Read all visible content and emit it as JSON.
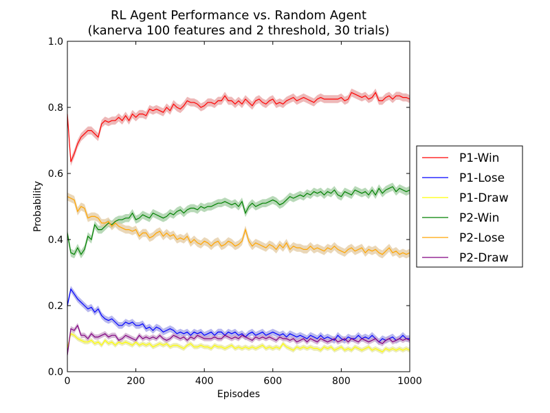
{
  "chart_data": {
    "type": "line",
    "title": "RL Agent Performance vs. Random Agent",
    "subtitle": "(kanerva 100 features and 2 threshold, 30 trials)",
    "xlabel": "Episodes",
    "ylabel": "Probability",
    "xlim": [
      0,
      1000
    ],
    "ylim": [
      0.0,
      1.0
    ],
    "xticks": [
      "0",
      "200",
      "400",
      "600",
      "800",
      "1000"
    ],
    "yticks": [
      "0.0",
      "0.2",
      "0.4",
      "0.6",
      "0.8",
      "1.0"
    ],
    "grid": false,
    "legend_position": "outside-right",
    "x": [
      0,
      10,
      20,
      30,
      40,
      50,
      60,
      70,
      80,
      90,
      100,
      110,
      120,
      130,
      140,
      150,
      160,
      170,
      180,
      190,
      200,
      210,
      220,
      230,
      240,
      250,
      260,
      270,
      280,
      290,
      300,
      310,
      320,
      330,
      340,
      350,
      360,
      370,
      380,
      390,
      400,
      410,
      420,
      430,
      440,
      450,
      460,
      470,
      480,
      490,
      500,
      510,
      520,
      530,
      540,
      550,
      560,
      570,
      580,
      590,
      600,
      610,
      620,
      630,
      640,
      650,
      660,
      670,
      680,
      690,
      700,
      710,
      720,
      730,
      740,
      750,
      760,
      770,
      780,
      790,
      800,
      810,
      820,
      830,
      840,
      850,
      860,
      870,
      880,
      890,
      900,
      910,
      920,
      930,
      940,
      950,
      960,
      970,
      980,
      990,
      1000
    ],
    "series": [
      {
        "name": "P1-Win",
        "color": "#ff0000",
        "band_color": "#e8a0a0",
        "spread": 0.012,
        "values": [
          0.78,
          0.635,
          0.66,
          0.69,
          0.71,
          0.72,
          0.73,
          0.73,
          0.72,
          0.71,
          0.75,
          0.76,
          0.755,
          0.76,
          0.76,
          0.77,
          0.76,
          0.775,
          0.76,
          0.78,
          0.77,
          0.78,
          0.78,
          0.775,
          0.795,
          0.79,
          0.795,
          0.79,
          0.785,
          0.8,
          0.79,
          0.81,
          0.8,
          0.795,
          0.805,
          0.82,
          0.815,
          0.815,
          0.81,
          0.8,
          0.805,
          0.815,
          0.815,
          0.81,
          0.82,
          0.82,
          0.835,
          0.82,
          0.82,
          0.81,
          0.82,
          0.81,
          0.825,
          0.815,
          0.805,
          0.82,
          0.825,
          0.815,
          0.81,
          0.82,
          0.825,
          0.81,
          0.815,
          0.81,
          0.82,
          0.825,
          0.83,
          0.82,
          0.825,
          0.83,
          0.825,
          0.82,
          0.815,
          0.825,
          0.83,
          0.825,
          0.825,
          0.825,
          0.825,
          0.825,
          0.83,
          0.82,
          0.825,
          0.845,
          0.84,
          0.835,
          0.83,
          0.835,
          0.825,
          0.83,
          0.845,
          0.82,
          0.82,
          0.83,
          0.835,
          0.825,
          0.835,
          0.835,
          0.83,
          0.83,
          0.825
        ]
      },
      {
        "name": "P1-Lose",
        "color": "#0000ff",
        "band_color": "#a0a0e8",
        "spread": 0.01,
        "values": [
          0.2,
          0.25,
          0.235,
          0.22,
          0.21,
          0.2,
          0.19,
          0.195,
          0.18,
          0.19,
          0.17,
          0.16,
          0.155,
          0.16,
          0.15,
          0.14,
          0.14,
          0.15,
          0.145,
          0.15,
          0.14,
          0.14,
          0.145,
          0.13,
          0.135,
          0.125,
          0.135,
          0.13,
          0.12,
          0.125,
          0.13,
          0.125,
          0.115,
          0.12,
          0.115,
          0.12,
          0.11,
          0.12,
          0.115,
          0.12,
          0.11,
          0.115,
          0.12,
          0.11,
          0.12,
          0.12,
          0.11,
          0.12,
          0.115,
          0.12,
          0.11,
          0.115,
          0.105,
          0.115,
          0.12,
          0.11,
          0.115,
          0.12,
          0.11,
          0.115,
          0.12,
          0.115,
          0.11,
          0.115,
          0.105,
          0.115,
          0.11,
          0.105,
          0.11,
          0.105,
          0.1,
          0.11,
          0.105,
          0.1,
          0.11,
          0.1,
          0.105,
          0.1,
          0.095,
          0.11,
          0.1,
          0.095,
          0.105,
          0.1,
          0.1,
          0.11,
          0.1,
          0.105,
          0.1,
          0.11,
          0.1,
          0.09,
          0.1,
          0.095,
          0.1,
          0.105,
          0.095,
          0.1,
          0.11,
          0.1,
          0.1
        ]
      },
      {
        "name": "P1-Draw",
        "color": "#ffff00",
        "band_color": "#e6e6a0",
        "spread": 0.007,
        "values": [
          0.07,
          0.115,
          0.11,
          0.1,
          0.095,
          0.09,
          0.09,
          0.095,
          0.085,
          0.09,
          0.08,
          0.095,
          0.085,
          0.09,
          0.08,
          0.09,
          0.085,
          0.09,
          0.085,
          0.08,
          0.09,
          0.08,
          0.085,
          0.08,
          0.085,
          0.075,
          0.08,
          0.085,
          0.08,
          0.085,
          0.075,
          0.08,
          0.08,
          0.075,
          0.07,
          0.08,
          0.085,
          0.075,
          0.075,
          0.08,
          0.075,
          0.075,
          0.07,
          0.08,
          0.075,
          0.075,
          0.07,
          0.075,
          0.08,
          0.07,
          0.075,
          0.07,
          0.075,
          0.07,
          0.075,
          0.07,
          0.075,
          0.08,
          0.07,
          0.075,
          0.07,
          0.075,
          0.07,
          0.085,
          0.075,
          0.07,
          0.065,
          0.075,
          0.07,
          0.075,
          0.07,
          0.075,
          0.07,
          0.07,
          0.065,
          0.075,
          0.07,
          0.075,
          0.065,
          0.07,
          0.075,
          0.065,
          0.07,
          0.065,
          0.075,
          0.07,
          0.065,
          0.07,
          0.075,
          0.065,
          0.07,
          0.065,
          0.06,
          0.07,
          0.065,
          0.07,
          0.065,
          0.07,
          0.065,
          0.07,
          0.065
        ]
      },
      {
        "name": "P2-Win",
        "color": "#008000",
        "band_color": "#a0cca0",
        "spread": 0.012,
        "values": [
          0.42,
          0.36,
          0.355,
          0.375,
          0.355,
          0.37,
          0.41,
          0.4,
          0.445,
          0.43,
          0.43,
          0.44,
          0.45,
          0.445,
          0.455,
          0.46,
          0.46,
          0.465,
          0.465,
          0.48,
          0.46,
          0.465,
          0.475,
          0.47,
          0.465,
          0.48,
          0.475,
          0.47,
          0.465,
          0.47,
          0.48,
          0.475,
          0.485,
          0.49,
          0.48,
          0.49,
          0.495,
          0.495,
          0.49,
          0.5,
          0.495,
          0.5,
          0.5,
          0.505,
          0.51,
          0.51,
          0.515,
          0.51,
          0.505,
          0.51,
          0.5,
          0.515,
          0.48,
          0.5,
          0.51,
          0.5,
          0.505,
          0.51,
          0.51,
          0.515,
          0.52,
          0.515,
          0.505,
          0.51,
          0.52,
          0.53,
          0.525,
          0.53,
          0.535,
          0.53,
          0.54,
          0.535,
          0.545,
          0.54,
          0.545,
          0.535,
          0.545,
          0.54,
          0.55,
          0.535,
          0.53,
          0.545,
          0.54,
          0.535,
          0.55,
          0.545,
          0.54,
          0.545,
          0.535,
          0.55,
          0.535,
          0.555,
          0.54,
          0.55,
          0.555,
          0.56,
          0.545,
          0.555,
          0.55,
          0.545,
          0.55
        ]
      },
      {
        "name": "P2-Lose",
        "color": "#ffa500",
        "band_color": "#e3c9a0",
        "spread": 0.012,
        "values": [
          0.53,
          0.525,
          0.52,
          0.485,
          0.5,
          0.495,
          0.465,
          0.47,
          0.47,
          0.465,
          0.45,
          0.45,
          0.455,
          0.44,
          0.45,
          0.44,
          0.435,
          0.43,
          0.43,
          0.425,
          0.43,
          0.41,
          0.42,
          0.42,
          0.405,
          0.41,
          0.42,
          0.425,
          0.41,
          0.42,
          0.41,
          0.415,
          0.4,
          0.405,
          0.4,
          0.41,
          0.39,
          0.4,
          0.39,
          0.385,
          0.395,
          0.39,
          0.38,
          0.39,
          0.395,
          0.38,
          0.385,
          0.395,
          0.39,
          0.38,
          0.385,
          0.395,
          0.43,
          0.395,
          0.38,
          0.39,
          0.385,
          0.38,
          0.375,
          0.385,
          0.38,
          0.37,
          0.385,
          0.375,
          0.39,
          0.37,
          0.38,
          0.375,
          0.375,
          0.37,
          0.37,
          0.38,
          0.37,
          0.375,
          0.37,
          0.365,
          0.375,
          0.37,
          0.38,
          0.37,
          0.365,
          0.36,
          0.37,
          0.375,
          0.365,
          0.37,
          0.375,
          0.36,
          0.37,
          0.365,
          0.37,
          0.36,
          0.355,
          0.365,
          0.375,
          0.36,
          0.365,
          0.355,
          0.36,
          0.355,
          0.36
        ]
      },
      {
        "name": "P2-Draw",
        "color": "#800080",
        "band_color": "#c8a0c8",
        "spread": 0.008,
        "values": [
          0.05,
          0.13,
          0.125,
          0.14,
          0.11,
          0.11,
          0.1,
          0.115,
          0.105,
          0.105,
          0.11,
          0.115,
          0.105,
          0.11,
          0.11,
          0.095,
          0.1,
          0.11,
          0.105,
          0.1,
          0.095,
          0.11,
          0.1,
          0.105,
          0.1,
          0.105,
          0.1,
          0.11,
          0.1,
          0.095,
          0.1,
          0.11,
          0.105,
          0.1,
          0.105,
          0.095,
          0.105,
          0.1,
          0.11,
          0.105,
          0.1,
          0.1,
          0.1,
          0.105,
          0.1,
          0.1,
          0.11,
          0.105,
          0.1,
          0.105,
          0.1,
          0.11,
          0.105,
          0.1,
          0.095,
          0.105,
          0.1,
          0.105,
          0.1,
          0.105,
          0.1,
          0.095,
          0.105,
          0.1,
          0.1,
          0.095,
          0.1,
          0.09,
          0.095,
          0.1,
          0.09,
          0.1,
          0.095,
          0.09,
          0.1,
          0.095,
          0.09,
          0.095,
          0.1,
          0.09,
          0.095,
          0.1,
          0.09,
          0.1,
          0.095,
          0.09,
          0.1,
          0.095,
          0.09,
          0.095,
          0.1,
          0.09,
          0.085,
          0.095,
          0.1,
          0.09,
          0.095,
          0.1,
          0.095,
          0.1,
          0.095
        ]
      }
    ]
  }
}
